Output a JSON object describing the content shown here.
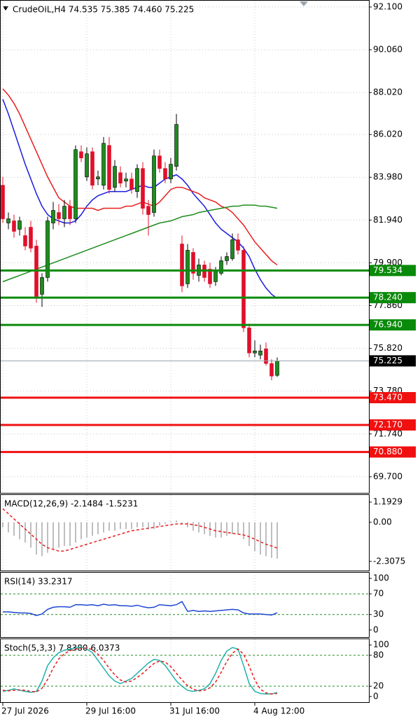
{
  "chart_data": [
    {
      "type": "candlestick",
      "title": "CrudeOIL,H4  74.535 75.385 74.460 75.225",
      "categories": [
        "27 Jul 2026",
        null,
        null,
        null,
        null,
        null,
        null,
        null,
        null,
        null,
        null,
        null,
        null,
        null,
        null,
        "29 Jul 16:00",
        null,
        null,
        null,
        null,
        null,
        null,
        null,
        null,
        null,
        null,
        null,
        null,
        null,
        null,
        "31 Jul 16:00",
        null,
        null,
        null,
        null,
        null,
        null,
        null,
        null,
        null,
        null,
        null,
        null,
        null,
        null,
        "4 Aug 12:00",
        null,
        null,
        null,
        null
      ],
      "open": [
        83.6,
        81.8,
        81.9,
        81.5,
        81.2,
        81.6,
        80.7,
        78.4,
        79.2,
        81.8,
        82.3,
        82.0,
        82.6,
        82.0,
        85.2,
        84.0,
        85.2,
        83.9,
        83.6,
        85.5,
        83.5,
        84.2,
        83.8,
        83.9,
        83.3,
        84.4,
        82.6,
        82.3,
        85.0,
        84.4,
        83.9,
        84.5,
        80.8,
        78.9,
        80.4,
        79.3,
        79.8,
        79.6,
        79.0,
        79.4,
        80.0,
        80.1,
        81.0,
        80.5,
        76.8,
        75.6,
        75.5,
        75.8,
        75.1,
        74.535
      ],
      "high": [
        84.0,
        82.3,
        82.2,
        82.1,
        81.6,
        81.9,
        81.0,
        79.4,
        82.1,
        82.8,
        82.7,
        82.9,
        82.9,
        85.5,
        85.5,
        85.4,
        85.4,
        84.3,
        85.9,
        85.9,
        84.8,
        84.5,
        84.2,
        84.2,
        84.6,
        84.7,
        82.9,
        85.3,
        85.3,
        84.7,
        84.9,
        87.0,
        81.2,
        80.8,
        80.6,
        80.1,
        80.0,
        79.9,
        79.7,
        80.2,
        80.4,
        81.3,
        81.3,
        80.7,
        77.0,
        76.2,
        76.0,
        76.1,
        75.3,
        75.385
      ],
      "low": [
        81.8,
        81.5,
        81.1,
        81.2,
        80.5,
        80.4,
        78.0,
        77.8,
        79.0,
        81.5,
        81.7,
        81.6,
        81.7,
        81.8,
        84.7,
        83.8,
        83.4,
        83.6,
        83.4,
        83.2,
        83.3,
        83.5,
        83.5,
        83.2,
        83.0,
        82.2,
        81.2,
        82.1,
        84.2,
        83.7,
        83.7,
        84.3,
        78.5,
        78.7,
        79.1,
        79.0,
        79.0,
        78.7,
        78.8,
        79.3,
        79.8,
        80.0,
        80.3,
        76.6,
        75.4,
        75.4,
        75.3,
        75.0,
        74.3,
        74.46
      ],
      "close": [
        82.0,
        82.0,
        81.4,
        81.9,
        80.7,
        80.6,
        78.3,
        79.2,
        81.9,
        82.4,
        82.0,
        82.6,
        82.0,
        85.3,
        84.9,
        85.1,
        83.6,
        84.0,
        85.6,
        83.4,
        84.5,
        83.7,
        83.9,
        83.4,
        84.4,
        82.5,
        82.2,
        85.0,
        84.4,
        83.9,
        84.6,
        86.5,
        78.8,
        80.5,
        79.4,
        79.8,
        79.2,
        78.9,
        79.5,
        80.0,
        80.2,
        81.0,
        80.5,
        76.8,
        75.6,
        75.7,
        75.7,
        75.1,
        74.5,
        75.225
      ],
      "up_color": "#1e8c1e",
      "down_color": "#e0102a",
      "series": [
        {
          "color": "#1a1ae0",
          "values": [
            87.7,
            87.0,
            86.2,
            85.4,
            84.6,
            83.9,
            83.2,
            82.6,
            82.2,
            82.0,
            81.9,
            81.8,
            81.8,
            81.9,
            82.2,
            82.6,
            82.9,
            83.1,
            83.2,
            83.3,
            83.3,
            83.3,
            83.3,
            83.4,
            83.5,
            83.6,
            83.5,
            83.5,
            83.7,
            83.9,
            84.0,
            84.1,
            83.9,
            83.6,
            83.2,
            82.9,
            82.6,
            82.2,
            81.8,
            81.5,
            81.3,
            81.1,
            80.9,
            80.6,
            80.2,
            79.6,
            79.1,
            78.7,
            78.4,
            78.2
          ]
        },
        {
          "color": "#e81e1e",
          "values": [
            88.2,
            87.9,
            87.5,
            87.0,
            86.4,
            85.8,
            85.2,
            84.6,
            84.0,
            83.5,
            83.0,
            82.8,
            82.6,
            82.5,
            82.5,
            82.5,
            82.5,
            82.4,
            82.5,
            82.5,
            82.5,
            82.5,
            82.6,
            82.6,
            82.7,
            82.8,
            82.7,
            82.6,
            82.8,
            83.1,
            83.4,
            83.5,
            83.5,
            83.4,
            83.3,
            83.2,
            83.0,
            82.9,
            82.8,
            82.6,
            82.5,
            82.3,
            82.0,
            81.7,
            81.3,
            80.9,
            80.6,
            80.3,
            80.0,
            79.8
          ]
        },
        {
          "color": "#1e8c1e",
          "values": [
            79.0,
            79.1,
            79.2,
            79.3,
            79.4,
            79.5,
            79.6,
            79.7,
            79.8,
            79.9,
            80.0,
            80.1,
            80.2,
            80.3,
            80.4,
            80.5,
            80.6,
            80.7,
            80.8,
            80.9,
            81.0,
            81.1,
            81.2,
            81.3,
            81.4,
            81.5,
            81.6,
            81.7,
            81.8,
            81.85,
            81.9,
            82.0,
            82.1,
            82.15,
            82.2,
            82.3,
            82.35,
            82.4,
            82.45,
            82.5,
            82.55,
            82.6,
            82.6,
            82.65,
            82.65,
            82.65,
            82.6,
            82.6,
            82.55,
            82.5
          ]
        }
      ],
      "levels": [
        {
          "value": 79.534,
          "label": "79.534",
          "color": "#0a8a0a"
        },
        {
          "value": 78.24,
          "label": "78.240",
          "color": "#0a8a0a"
        },
        {
          "value": 76.94,
          "label": "76.940",
          "color": "#0a8a0a"
        },
        {
          "value": 73.47,
          "label": "73.470",
          "color": "#f01010"
        },
        {
          "value": 72.17,
          "label": "72.170",
          "color": "#f01010"
        },
        {
          "value": 70.88,
          "label": "70.880",
          "color": "#f01010"
        }
      ],
      "last_price": {
        "value": 75.225,
        "label": "75.225"
      },
      "ylim": [
        68.93,
        92.434
      ],
      "yticks": [
        {
          "value": 92.1,
          "label": "92.100"
        },
        {
          "value": 90.06,
          "label": "90.060"
        },
        {
          "value": 88.02,
          "label": "88.020"
        },
        {
          "value": 86.02,
          "label": "86.020"
        },
        {
          "value": 83.98,
          "label": "83.980"
        },
        {
          "value": 81.94,
          "label": "81.940"
        },
        {
          "value": 79.9,
          "label": "79.900"
        },
        {
          "value": 77.86,
          "label": "77.860"
        },
        {
          "value": 75.82,
          "label": "75.820"
        },
        {
          "value": 73.78,
          "label": "73.780"
        },
        {
          "value": 71.74,
          "label": "71.740"
        },
        {
          "value": 69.7,
          "label": "69.700"
        }
      ],
      "grid": true
    },
    {
      "type": "macd",
      "title": "MACD(12,26,9) -2.1484 -1.5231",
      "color": "#a8a8a8",
      "values": [
        -0.3,
        -0.6,
        -0.8,
        -1.0,
        -1.2,
        -1.5,
        -1.9,
        -2.0,
        -1.8,
        -1.6,
        -1.5,
        -1.4,
        -1.4,
        -1.2,
        -1.0,
        -0.9,
        -0.8,
        -0.7,
        -0.6,
        -0.5,
        -0.5,
        -0.4,
        -0.4,
        -0.4,
        -0.3,
        -0.3,
        -0.4,
        -0.4,
        -0.2,
        -0.1,
        0.05,
        0.1,
        -0.1,
        -0.3,
        -0.5,
        -0.6,
        -0.7,
        -0.8,
        -0.9,
        -0.9,
        -0.8,
        -0.7,
        -0.7,
        -1.0,
        -1.4,
        -1.7,
        -1.9,
        -2.0,
        -2.1,
        -2.1484
      ],
      "series": [
        {
          "color": "#e81e1e",
          "dash": true,
          "values": [
            0.8,
            0.5,
            0.2,
            -0.1,
            -0.4,
            -0.7,
            -1.0,
            -1.3,
            -1.5,
            -1.6,
            -1.7,
            -1.7,
            -1.6,
            -1.5,
            -1.4,
            -1.3,
            -1.2,
            -1.1,
            -1.0,
            -0.9,
            -0.8,
            -0.7,
            -0.6,
            -0.5,
            -0.45,
            -0.4,
            -0.35,
            -0.3,
            -0.25,
            -0.2,
            -0.15,
            -0.1,
            -0.1,
            -0.1,
            -0.15,
            -0.2,
            -0.3,
            -0.4,
            -0.5,
            -0.55,
            -0.6,
            -0.65,
            -0.7,
            -0.75,
            -0.85,
            -1.0,
            -1.15,
            -1.3,
            -1.4,
            -1.5231
          ]
        }
      ],
      "ylim": [
        -2.849,
        1.651
      ],
      "yticks": [
        1.1929,
        {
          "value": 0,
          "label": "0.00"
        },
        -2.3075
      ]
    },
    {
      "type": "line",
      "title": "RSI(14) 33.2317",
      "series": [
        {
          "color": "#1e46d2",
          "values": [
            35,
            35,
            34,
            33,
            33,
            32,
            28,
            31,
            40,
            44,
            45,
            45,
            44,
            49,
            49,
            48,
            49,
            47,
            50,
            48,
            49,
            47,
            47,
            46,
            48,
            45,
            43,
            44,
            49,
            48,
            47,
            49,
            55,
            36,
            38,
            36,
            37,
            36,
            37,
            38,
            39,
            40,
            39,
            33,
            31,
            31,
            31,
            30,
            29,
            33.2317
          ]
        }
      ],
      "levels": [
        70,
        30
      ],
      "level_color": "#1e8c1e",
      "ylim": [
        -13.7,
        112.3
      ],
      "yticks": [
        100,
        70,
        30,
        0
      ]
    },
    {
      "type": "line",
      "title": "Stoch(5,3,3) 7.8380 6.0373",
      "series": [
        {
          "color": "#20b2aa",
          "values": [
            10,
            12,
            15,
            12,
            10,
            8,
            10,
            30,
            60,
            75,
            85,
            90,
            92,
            94,
            96,
            92,
            85,
            70,
            55,
            40,
            30,
            25,
            30,
            35,
            45,
            55,
            65,
            72,
            70,
            60,
            45,
            30,
            20,
            12,
            10,
            12,
            15,
            25,
            45,
            70,
            88,
            95,
            92,
            60,
            25,
            10,
            6,
            5,
            5,
            7.838
          ]
        },
        {
          "color": "#e81e1e",
          "dash": true,
          "values": [
            12,
            11,
            12,
            13,
            12,
            10,
            9,
            16,
            33,
            55,
            73,
            83,
            89,
            92,
            94,
            94,
            91,
            82,
            70,
            55,
            42,
            32,
            28,
            30,
            37,
            45,
            55,
            64,
            69,
            67,
            58,
            45,
            32,
            21,
            14,
            11,
            12,
            17,
            28,
            47,
            68,
            84,
            92,
            82,
            59,
            32,
            14,
            7,
            5,
            6.0373
          ]
        }
      ],
      "levels": [
        80,
        20
      ],
      "level_color": "#1e8c1e",
      "ylim": [
        -11,
        112.5
      ],
      "yticks": [
        100,
        80,
        20,
        0
      ]
    }
  ]
}
